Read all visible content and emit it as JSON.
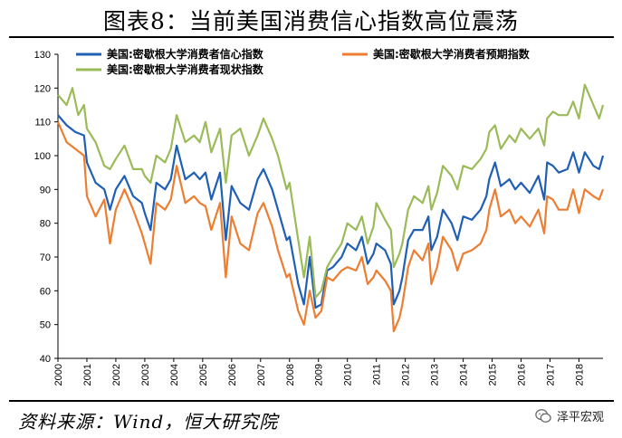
{
  "header": {
    "title": "图表8：当前美国消费信心指数高位震荡"
  },
  "footer": {
    "source": "资料来源：Wind，恒大研究院",
    "watermark": "泽平宏观"
  },
  "colors": {
    "blue": "#1f5fb4",
    "orange": "#ed7d31",
    "green": "#9bbb59"
  },
  "chart_data": {
    "type": "line",
    "title": "",
    "xlabel": "",
    "ylabel": "",
    "ylim": [
      40,
      130
    ],
    "yticks": [
      40,
      50,
      60,
      70,
      80,
      90,
      100,
      110,
      120,
      130
    ],
    "xlim": [
      2000,
      2018.83
    ],
    "xticks": [
      "2000",
      "2001",
      "2002",
      "2003",
      "2004",
      "2005",
      "2006",
      "2007",
      "2008",
      "2009",
      "2010",
      "2011",
      "2012",
      "2013",
      "2014",
      "2015",
      "2016",
      "2017",
      "2018"
    ],
    "legend_position": "top",
    "series": [
      {
        "name": "美国:密歇根大学消费者信心指数",
        "color": "#1f5fb4",
        "points": [
          [
            2000.0,
            112
          ],
          [
            2000.3,
            109
          ],
          [
            2000.6,
            107
          ],
          [
            2000.9,
            106
          ],
          [
            2001.0,
            98
          ],
          [
            2001.3,
            92
          ],
          [
            2001.6,
            90
          ],
          [
            2001.8,
            84
          ],
          [
            2002.0,
            90
          ],
          [
            2002.3,
            94
          ],
          [
            2002.6,
            88
          ],
          [
            2002.9,
            86
          ],
          [
            2003.0,
            83
          ],
          [
            2003.2,
            78
          ],
          [
            2003.4,
            92
          ],
          [
            2003.7,
            90
          ],
          [
            2003.9,
            93
          ],
          [
            2004.1,
            103
          ],
          [
            2004.4,
            93
          ],
          [
            2004.7,
            95
          ],
          [
            2004.9,
            93
          ],
          [
            2005.1,
            95
          ],
          [
            2005.3,
            87
          ],
          [
            2005.6,
            95
          ],
          [
            2005.8,
            75
          ],
          [
            2006.0,
            91
          ],
          [
            2006.3,
            86
          ],
          [
            2006.6,
            84
          ],
          [
            2006.9,
            93
          ],
          [
            2007.1,
            96
          ],
          [
            2007.4,
            90
          ],
          [
            2007.6,
            84
          ],
          [
            2007.9,
            75
          ],
          [
            2008.0,
            76
          ],
          [
            2008.3,
            62
          ],
          [
            2008.5,
            56
          ],
          [
            2008.7,
            70
          ],
          [
            2008.9,
            55
          ],
          [
            2009.1,
            56
          ],
          [
            2009.3,
            66
          ],
          [
            2009.5,
            67
          ],
          [
            2009.8,
            70
          ],
          [
            2010.0,
            74
          ],
          [
            2010.3,
            72
          ],
          [
            2010.5,
            76
          ],
          [
            2010.7,
            68
          ],
          [
            2010.9,
            71
          ],
          [
            2011.0,
            74
          ],
          [
            2011.3,
            72
          ],
          [
            2011.5,
            68
          ],
          [
            2011.6,
            56
          ],
          [
            2011.8,
            60
          ],
          [
            2011.9,
            64
          ],
          [
            2012.1,
            75
          ],
          [
            2012.3,
            78
          ],
          [
            2012.6,
            78
          ],
          [
            2012.8,
            82
          ],
          [
            2012.9,
            72
          ],
          [
            2013.1,
            76
          ],
          [
            2013.3,
            84
          ],
          [
            2013.6,
            80
          ],
          [
            2013.8,
            75
          ],
          [
            2014.0,
            82
          ],
          [
            2014.3,
            81
          ],
          [
            2014.6,
            84
          ],
          [
            2014.8,
            88
          ],
          [
            2014.9,
            93
          ],
          [
            2015.1,
            98
          ],
          [
            2015.3,
            91
          ],
          [
            2015.6,
            93
          ],
          [
            2015.8,
            90
          ],
          [
            2016.0,
            92
          ],
          [
            2016.3,
            89
          ],
          [
            2016.6,
            94
          ],
          [
            2016.8,
            87
          ],
          [
            2016.9,
            98
          ],
          [
            2017.1,
            97
          ],
          [
            2017.3,
            95
          ],
          [
            2017.6,
            96
          ],
          [
            2017.8,
            101
          ],
          [
            2018.0,
            95
          ],
          [
            2018.2,
            101
          ],
          [
            2018.5,
            97
          ],
          [
            2018.7,
            96
          ],
          [
            2018.83,
            100
          ]
        ]
      },
      {
        "name": "美国:密歇根大学消费者预期指数",
        "color": "#ed7d31",
        "points": [
          [
            2000.0,
            110
          ],
          [
            2000.3,
            104
          ],
          [
            2000.6,
            102
          ],
          [
            2000.9,
            100
          ],
          [
            2001.0,
            88
          ],
          [
            2001.3,
            82
          ],
          [
            2001.6,
            87
          ],
          [
            2001.8,
            74
          ],
          [
            2002.0,
            84
          ],
          [
            2002.3,
            90
          ],
          [
            2002.6,
            84
          ],
          [
            2002.9,
            77
          ],
          [
            2003.0,
            74
          ],
          [
            2003.2,
            68
          ],
          [
            2003.4,
            86
          ],
          [
            2003.7,
            84
          ],
          [
            2003.9,
            87
          ],
          [
            2004.1,
            97
          ],
          [
            2004.4,
            86
          ],
          [
            2004.7,
            88
          ],
          [
            2004.9,
            86
          ],
          [
            2005.1,
            85
          ],
          [
            2005.3,
            78
          ],
          [
            2005.6,
            86
          ],
          [
            2005.8,
            64
          ],
          [
            2006.0,
            82
          ],
          [
            2006.3,
            74
          ],
          [
            2006.6,
            72
          ],
          [
            2006.9,
            83
          ],
          [
            2007.1,
            86
          ],
          [
            2007.4,
            79
          ],
          [
            2007.6,
            72
          ],
          [
            2007.9,
            64
          ],
          [
            2008.0,
            65
          ],
          [
            2008.3,
            54
          ],
          [
            2008.5,
            50
          ],
          [
            2008.7,
            60
          ],
          [
            2008.9,
            52
          ],
          [
            2009.1,
            54
          ],
          [
            2009.3,
            64
          ],
          [
            2009.5,
            63
          ],
          [
            2009.8,
            66
          ],
          [
            2010.0,
            67
          ],
          [
            2010.3,
            66
          ],
          [
            2010.5,
            70
          ],
          [
            2010.7,
            62
          ],
          [
            2010.9,
            64
          ],
          [
            2011.0,
            66
          ],
          [
            2011.3,
            63
          ],
          [
            2011.5,
            60
          ],
          [
            2011.6,
            48
          ],
          [
            2011.8,
            52
          ],
          [
            2011.9,
            56
          ],
          [
            2012.1,
            67
          ],
          [
            2012.3,
            72
          ],
          [
            2012.6,
            69
          ],
          [
            2012.8,
            74
          ],
          [
            2012.9,
            62
          ],
          [
            2013.1,
            67
          ],
          [
            2013.3,
            76
          ],
          [
            2013.6,
            72
          ],
          [
            2013.8,
            66
          ],
          [
            2014.0,
            71
          ],
          [
            2014.3,
            72
          ],
          [
            2014.6,
            74
          ],
          [
            2014.8,
            78
          ],
          [
            2014.9,
            84
          ],
          [
            2015.1,
            90
          ],
          [
            2015.3,
            82
          ],
          [
            2015.6,
            84
          ],
          [
            2015.8,
            80
          ],
          [
            2016.0,
            82
          ],
          [
            2016.3,
            79
          ],
          [
            2016.6,
            84
          ],
          [
            2016.8,
            77
          ],
          [
            2016.9,
            88
          ],
          [
            2017.1,
            87
          ],
          [
            2017.3,
            84
          ],
          [
            2017.6,
            84
          ],
          [
            2017.8,
            90
          ],
          [
            2018.0,
            83
          ],
          [
            2018.2,
            90
          ],
          [
            2018.5,
            88
          ],
          [
            2018.7,
            87
          ],
          [
            2018.83,
            90
          ]
        ]
      },
      {
        "name": "美国:密歇根大学消费者现状指数",
        "color": "#9bbb59",
        "points": [
          [
            2000.0,
            118
          ],
          [
            2000.3,
            115
          ],
          [
            2000.5,
            120
          ],
          [
            2000.7,
            112
          ],
          [
            2000.9,
            115
          ],
          [
            2001.0,
            108
          ],
          [
            2001.3,
            104
          ],
          [
            2001.6,
            97
          ],
          [
            2001.8,
            96
          ],
          [
            2002.0,
            99
          ],
          [
            2002.3,
            103
          ],
          [
            2002.6,
            96
          ],
          [
            2002.9,
            96
          ],
          [
            2003.0,
            94
          ],
          [
            2003.2,
            92
          ],
          [
            2003.4,
            100
          ],
          [
            2003.7,
            98
          ],
          [
            2003.9,
            102
          ],
          [
            2004.1,
            112
          ],
          [
            2004.4,
            104
          ],
          [
            2004.7,
            106
          ],
          [
            2004.9,
            104
          ],
          [
            2005.1,
            110
          ],
          [
            2005.3,
            101
          ],
          [
            2005.6,
            108
          ],
          [
            2005.8,
            92
          ],
          [
            2006.0,
            106
          ],
          [
            2006.3,
            108
          ],
          [
            2006.6,
            100
          ],
          [
            2006.9,
            106
          ],
          [
            2007.1,
            111
          ],
          [
            2007.4,
            105
          ],
          [
            2007.6,
            100
          ],
          [
            2007.9,
            90
          ],
          [
            2008.0,
            92
          ],
          [
            2008.3,
            75
          ],
          [
            2008.5,
            64
          ],
          [
            2008.7,
            76
          ],
          [
            2008.9,
            58
          ],
          [
            2009.1,
            60
          ],
          [
            2009.3,
            67
          ],
          [
            2009.5,
            70
          ],
          [
            2009.8,
            74
          ],
          [
            2010.0,
            80
          ],
          [
            2010.3,
            78
          ],
          [
            2010.5,
            82
          ],
          [
            2010.7,
            74
          ],
          [
            2010.9,
            79
          ],
          [
            2011.0,
            86
          ],
          [
            2011.3,
            81
          ],
          [
            2011.5,
            78
          ],
          [
            2011.6,
            67
          ],
          [
            2011.8,
            71
          ],
          [
            2011.9,
            74
          ],
          [
            2012.1,
            84
          ],
          [
            2012.3,
            88
          ],
          [
            2012.6,
            86
          ],
          [
            2012.8,
            91
          ],
          [
            2012.9,
            84
          ],
          [
            2013.1,
            89
          ],
          [
            2013.3,
            97
          ],
          [
            2013.6,
            94
          ],
          [
            2013.8,
            90
          ],
          [
            2014.0,
            97
          ],
          [
            2014.3,
            96
          ],
          [
            2014.6,
            99
          ],
          [
            2014.8,
            102
          ],
          [
            2014.9,
            107
          ],
          [
            2015.1,
            109
          ],
          [
            2015.3,
            102
          ],
          [
            2015.6,
            106
          ],
          [
            2015.8,
            104
          ],
          [
            2016.0,
            108
          ],
          [
            2016.3,
            105
          ],
          [
            2016.6,
            108
          ],
          [
            2016.8,
            103
          ],
          [
            2016.9,
            111
          ],
          [
            2017.1,
            113
          ],
          [
            2017.3,
            112
          ],
          [
            2017.6,
            112
          ],
          [
            2017.8,
            116
          ],
          [
            2018.0,
            111
          ],
          [
            2018.2,
            121
          ],
          [
            2018.5,
            115
          ],
          [
            2018.7,
            111
          ],
          [
            2018.83,
            115
          ]
        ]
      }
    ]
  }
}
